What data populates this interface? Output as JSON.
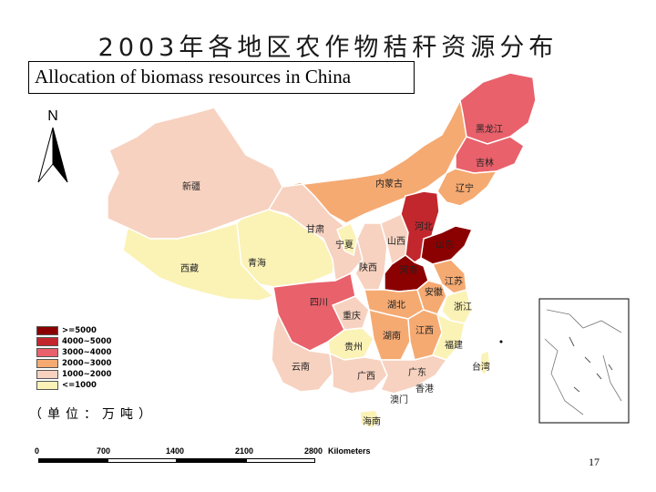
{
  "title": "2003年各地区农作物秸秆资源分布",
  "subtitle": "Allocation of biomass resources in China",
  "north_label": "N",
  "legend": {
    "items": [
      {
        "label": ">=5000",
        "color": "#8b0000"
      },
      {
        "label": "4000~5000",
        "color": "#c1272d"
      },
      {
        "label": "3000~4000",
        "color": "#e8616b"
      },
      {
        "label": "2000~3000",
        "color": "#f5aa72"
      },
      {
        "label": "1000~2000",
        "color": "#f7d2c0"
      },
      {
        "label": "<=1000",
        "color": "#fbf2b6"
      }
    ],
    "unit": "（单位：万吨）"
  },
  "scale_bar": {
    "ticks": [
      "0",
      "700",
      "1400",
      "2100",
      "2800"
    ],
    "unit_label": "Kilometers"
  },
  "provinces": {
    "heilongjiang": "黑龙江",
    "jilin": "吉林",
    "liaoning": "辽宁",
    "neimenggu": "内蒙古",
    "xinjiang": "新疆",
    "xizang": "西藏",
    "qinghai": "青海",
    "gansu": "甘肃",
    "ningxia": "宁夏",
    "shanxi": "山西",
    "shaanxi": "陕西",
    "henan": "河南",
    "hebei": "河北",
    "shandong": "山东",
    "jiangsu": "江苏",
    "anhui": "安徽",
    "sichuan": "四川",
    "chongqing": "重庆",
    "hubei": "湖北",
    "hunan": "湖南",
    "jiangxi": "江西",
    "zhejiang": "浙江",
    "fujian": "福建",
    "guizhou": "贵州",
    "yunnan": "云南",
    "guangxi": "广西",
    "guangdong": "广东",
    "taiwan": "台湾",
    "xianggang": "香港",
    "aomen": "澳门",
    "hainan": "海南"
  },
  "page_number": "17"
}
